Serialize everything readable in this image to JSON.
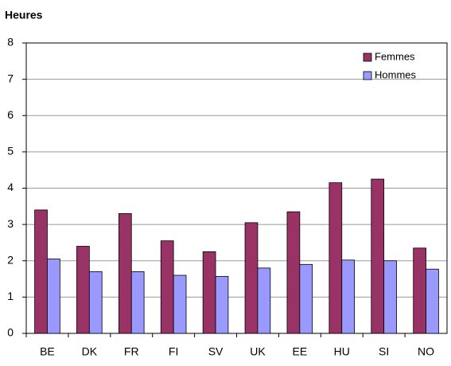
{
  "chart_data": {
    "type": "bar",
    "title": "Heures",
    "categories": [
      "BE",
      "DK",
      "FR",
      "FI",
      "SV",
      "UK",
      "EE",
      "HU",
      "SI",
      "NO"
    ],
    "series": [
      {
        "name": "Femmes",
        "color": "#993366",
        "values": [
          3.4,
          2.4,
          3.3,
          2.55,
          2.25,
          3.05,
          3.35,
          4.15,
          4.25,
          2.35
        ]
      },
      {
        "name": "Hommes",
        "color": "#9999ff",
        "values": [
          2.05,
          1.7,
          1.7,
          1.6,
          1.57,
          1.8,
          1.9,
          2.02,
          2.0,
          1.77
        ]
      }
    ],
    "ylim": [
      0,
      8
    ],
    "yticks": [
      0,
      1,
      2,
      3,
      4,
      5,
      6,
      7,
      8
    ],
    "grid": true,
    "legend": "top-right"
  }
}
